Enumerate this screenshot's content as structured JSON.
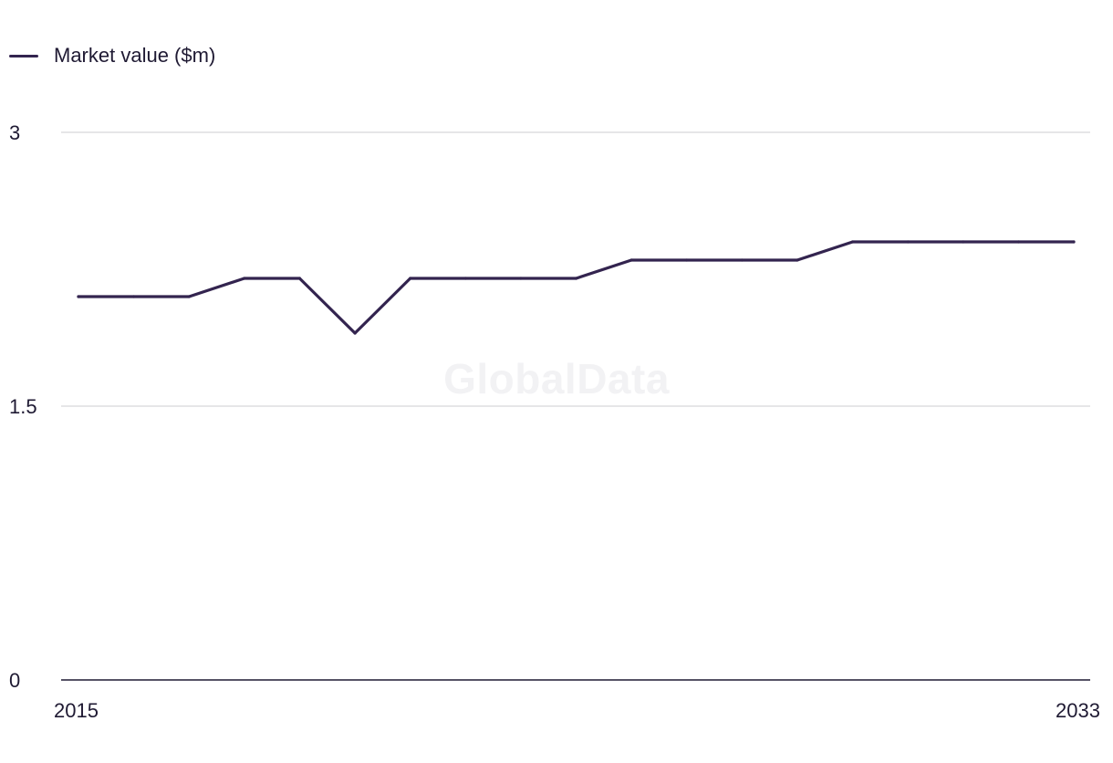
{
  "chart_data": {
    "type": "line",
    "title": "",
    "xlabel": "",
    "ylabel": "",
    "x": [
      2015,
      2016,
      2017,
      2018,
      2019,
      2020,
      2021,
      2022,
      2023,
      2024,
      2025,
      2026,
      2027,
      2028,
      2029,
      2030,
      2031,
      2032,
      2033
    ],
    "series": [
      {
        "name": "Market value ($m)",
        "color": "#33244f",
        "values": [
          2.1,
          2.1,
          2.1,
          2.2,
          2.2,
          1.9,
          2.2,
          2.2,
          2.2,
          2.2,
          2.3,
          2.3,
          2.3,
          2.3,
          2.4,
          2.4,
          2.4,
          2.4,
          2.4
        ]
      }
    ],
    "ylim": [
      0,
      3
    ],
    "y_ticks": [
      "0",
      "1.5",
      "3"
    ],
    "x_tick_labels": [
      "2015",
      "2033"
    ],
    "grid": true,
    "legend_position": "top-left"
  },
  "watermark": "GlobalData"
}
